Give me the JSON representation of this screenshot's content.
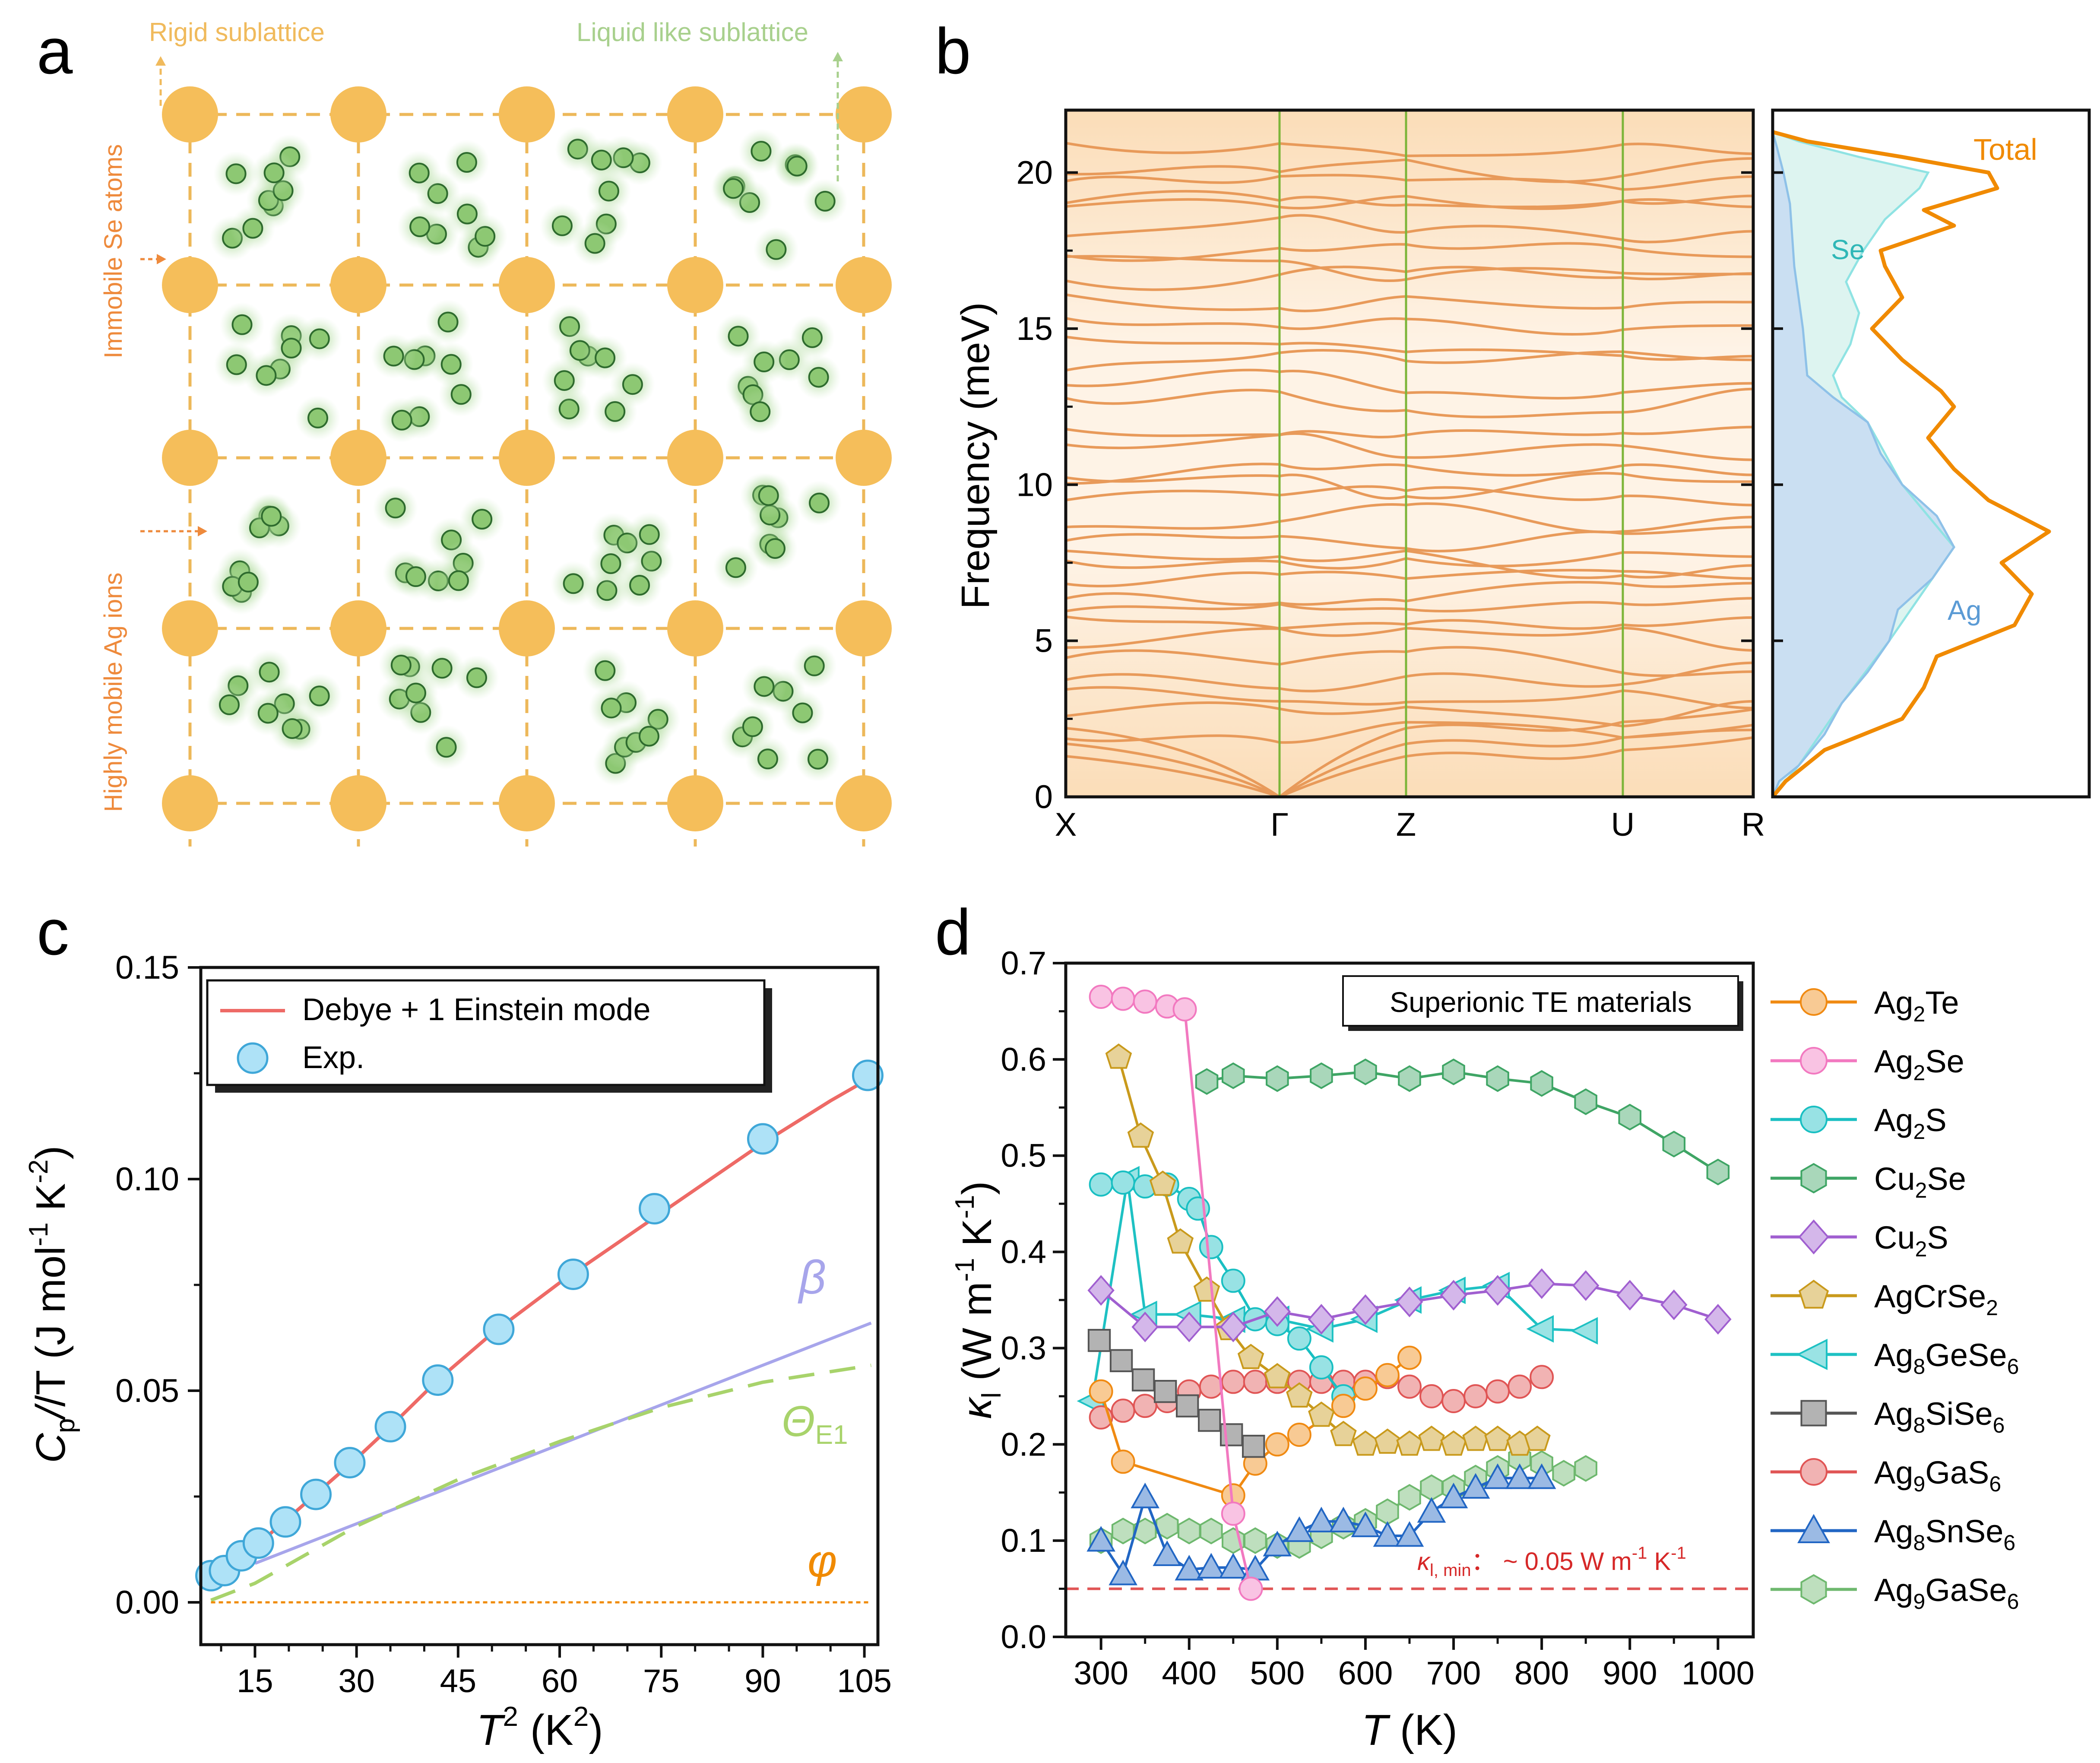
{
  "panels": {
    "a": {
      "label": "a",
      "rigid_label": "Rigid sublattice",
      "liquid_label": "Liquid like sublattice",
      "immobile_label": "Immobile Se atoms",
      "mobile_label": "Highly mobile Ag ions",
      "colors": {
        "se_atom": "#F5BE5A",
        "ag_ion": "#8DC873",
        "grid": "#EDB85A",
        "arrow_text": "#EE8A3C",
        "liquid_text": "#A8D08D"
      }
    },
    "b": {
      "label": "b",
      "ylabel": "Frequency (meV)",
      "yticks": [
        "0",
        "5",
        "10",
        "15",
        "20"
      ],
      "kpoints": [
        "X",
        "Γ",
        "Z",
        "U",
        "R"
      ],
      "dos_labels": {
        "total": "Total",
        "se": "Se",
        "ag": "Ag"
      },
      "colors": {
        "bands": "#E89A5A",
        "kline": "#7DB53A",
        "total": "#F08A00",
        "se": "#3FC7C7",
        "ag": "#6FA8DC"
      }
    },
    "c": {
      "label": "c",
      "xlabel_main": "T",
      "xlabel_unit": "(K",
      "xlabel_end": ")",
      "ylabel_main": "C",
      "ylabel_sub": "p",
      "ylabel_mid": "/T (J mol",
      "ylabel_tail": " K",
      "legend": {
        "fit": "Debye + 1 Einstein mode",
        "exp": "Exp."
      },
      "annotations": {
        "beta": "β",
        "theta_main": "Θ",
        "theta_sub": "E1",
        "phi": "φ"
      }
    },
    "d": {
      "label": "d",
      "box_label": "Superionic TE materials",
      "kmin_label_sym": "κ",
      "kmin_label_sub": "l, min",
      "kmin_label_rest": "： ~ 0.05 W m",
      "kmin_label_end": " K",
      "xlabel_main": "T",
      "xlabel_unit": " (K)",
      "ylabel_main": "κ",
      "ylabel_sub": "l",
      "ylabel_unit": " (W m",
      "ylabel_tail": " K"
    }
  },
  "chart_data": [
    {
      "type": "line",
      "panel": "b",
      "ylabel": "Frequency (meV)",
      "ylim": [
        0,
        22
      ],
      "x_ticks": [
        "X",
        "Γ",
        "Z",
        "U",
        "R"
      ],
      "y_ticks": [
        0,
        5,
        10,
        15,
        20
      ]
    },
    {
      "type": "area",
      "panel": "b-dos",
      "series": [
        {
          "name": "Total"
        },
        {
          "name": "Se"
        },
        {
          "name": "Ag"
        }
      ]
    },
    {
      "type": "scatter",
      "panel": "c",
      "xlim": [
        7,
        107
      ],
      "ylim": [
        -0.01,
        0.15
      ],
      "x_ticks": [
        15,
        30,
        45,
        60,
        75,
        90,
        105
      ],
      "y_ticks": [
        "0.00",
        "0.05",
        "0.10",
        "0.15"
      ],
      "series": [
        {
          "name": "Exp.",
          "x": [
            8.5,
            10.5,
            13,
            15.5,
            19.5,
            24,
            29,
            35,
            42,
            51,
            62,
            74,
            90,
            105.5
          ],
          "y": [
            0.0063,
            0.0075,
            0.011,
            0.014,
            0.019,
            0.0255,
            0.033,
            0.0415,
            0.0525,
            0.0645,
            0.0775,
            0.093,
            0.1095,
            0.1245
          ]
        },
        {
          "name": "Debye + 1 Einstein mode",
          "x": [
            8.5,
            12,
            16,
            20,
            25,
            30,
            35,
            42,
            50,
            60,
            70,
            80,
            90,
            100,
            106
          ],
          "y": [
            0.0063,
            0.0095,
            0.0145,
            0.02,
            0.027,
            0.034,
            0.0415,
            0.0525,
            0.0635,
            0.0755,
            0.0865,
            0.0975,
            0.1085,
            0.1185,
            0.124
          ]
        },
        {
          "name": "β",
          "x": [
            15,
            106
          ],
          "y": [
            0.0092,
            0.066
          ]
        },
        {
          "name": "ΘE1",
          "x": [
            8.5,
            15,
            30,
            45,
            60,
            75,
            90,
            106
          ],
          "y": [
            0.0005,
            0.0045,
            0.018,
            0.029,
            0.038,
            0.046,
            0.052,
            0.056
          ]
        },
        {
          "name": "φ",
          "x": [
            8.5,
            106
          ],
          "y": [
            0,
            0
          ]
        }
      ]
    },
    {
      "type": "line",
      "panel": "d",
      "xlabel": "T (K)",
      "xlim": [
        260,
        1040
      ],
      "ylim": [
        0,
        0.7
      ],
      "x_ticks": [
        300,
        400,
        500,
        600,
        700,
        800,
        900,
        1000
      ],
      "y_ticks": [
        "0.0",
        "0.1",
        "0.2",
        "0.3",
        "0.4",
        "0.5",
        "0.6",
        "0.7"
      ],
      "kmin": 0.05,
      "series": [
        {
          "name": "Ag2Te",
          "name_base": "Ag",
          "name_s1": "2",
          "name_mid": "Te",
          "name_s2": "",
          "color": "#F08A12",
          "marker": "circle",
          "x": [
            300,
            325,
            450,
            475,
            500,
            525,
            575,
            600,
            625,
            650
          ],
          "y": [
            0.255,
            0.182,
            0.147,
            0.18,
            0.2,
            0.21,
            0.24,
            0.258,
            0.272,
            0.29
          ]
        },
        {
          "name": "Ag2Se",
          "name_base": "Ag",
          "name_s1": "2",
          "name_mid": "Se",
          "name_s2": "",
          "color": "#F279C0",
          "marker": "circle",
          "x": [
            300,
            325,
            350,
            375,
            395,
            450,
            470
          ],
          "y": [
            0.665,
            0.663,
            0.66,
            0.655,
            0.652,
            0.128,
            0.05
          ]
        },
        {
          "name": "Ag2S",
          "name_base": "Ag",
          "name_s1": "2",
          "name_mid": "S",
          "name_s2": "",
          "color": "#19BFC2",
          "marker": "circle",
          "x": [
            300,
            325,
            350,
            375,
            400,
            410,
            425,
            450,
            475,
            500,
            525,
            550,
            575
          ],
          "y": [
            0.47,
            0.472,
            0.468,
            0.47,
            0.455,
            0.445,
            0.405,
            0.37,
            0.33,
            0.325,
            0.31,
            0.28,
            0.25
          ]
        },
        {
          "name": "Cu2Se",
          "name_base": "Cu",
          "name_s1": "2",
          "name_mid": "Se",
          "name_s2": "",
          "color": "#3FA565",
          "marker": "hexagon",
          "x": [
            420,
            450,
            500,
            550,
            600,
            650,
            700,
            750,
            800,
            850,
            900,
            950,
            1000
          ],
          "y": [
            0.577,
            0.583,
            0.58,
            0.583,
            0.587,
            0.58,
            0.587,
            0.58,
            0.575,
            0.556,
            0.54,
            0.512,
            0.483
          ]
        },
        {
          "name": "Cu2S",
          "name_base": "Cu",
          "name_s1": "2",
          "name_mid": "S",
          "name_s2": "",
          "color": "#A05FD0",
          "marker": "diamond",
          "x": [
            300,
            350,
            400,
            450,
            500,
            550,
            600,
            650,
            700,
            750,
            800,
            850,
            900,
            950,
            1000
          ],
          "y": [
            0.36,
            0.322,
            0.322,
            0.322,
            0.338,
            0.33,
            0.34,
            0.348,
            0.355,
            0.36,
            0.367,
            0.365,
            0.355,
            0.345,
            0.33
          ]
        },
        {
          "name": "AgCrSe2",
          "name_base": "AgCrSe",
          "name_s1": "2",
          "name_mid": "",
          "name_s2": "",
          "color": "#C99A1C",
          "marker": "pentagon",
          "x": [
            320,
            345,
            370,
            390,
            420,
            445,
            470,
            500,
            525,
            550,
            575,
            600,
            625,
            650,
            675,
            700,
            725,
            750,
            775,
            795
          ],
          "y": [
            0.602,
            0.52,
            0.47,
            0.41,
            0.36,
            0.32,
            0.29,
            0.27,
            0.25,
            0.23,
            0.21,
            0.2,
            0.202,
            0.2,
            0.205,
            0.2,
            0.205,
            0.205,
            0.2,
            0.205
          ]
        },
        {
          "name": "Ag8GeSe6",
          "name_base": "Ag",
          "name_s1": "8",
          "name_mid": "GeSe",
          "name_s2": "6",
          "color": "#1EC1C3",
          "marker": "tri-left",
          "x": [
            290,
            330,
            350,
            400,
            450,
            500,
            550,
            600,
            650,
            700,
            750,
            800,
            850
          ],
          "y": [
            0.245,
            0.475,
            0.335,
            0.335,
            0.33,
            0.33,
            0.32,
            0.33,
            0.35,
            0.36,
            0.365,
            0.32,
            0.318
          ]
        },
        {
          "name": "Ag8SiSe6",
          "name_base": "Ag",
          "name_s1": "8",
          "name_mid": "SiSe",
          "name_s2": "6",
          "color": "#555555",
          "marker": "square",
          "x": [
            298,
            323,
            348,
            373,
            398,
            423,
            448,
            473
          ],
          "y": [
            0.308,
            0.287,
            0.267,
            0.255,
            0.24,
            0.225,
            0.21,
            0.198
          ]
        },
        {
          "name": "Ag9GaS6",
          "name_base": "Ag",
          "name_s1": "9",
          "name_mid": "GaS",
          "name_s2": "6",
          "color": "#E05555",
          "marker": "circle",
          "x": [
            300,
            325,
            350,
            375,
            400,
            425,
            450,
            475,
            500,
            525,
            550,
            575,
            600,
            625,
            650,
            675,
            700,
            725,
            750,
            775,
            800
          ],
          "y": [
            0.228,
            0.235,
            0.24,
            0.245,
            0.255,
            0.26,
            0.265,
            0.265,
            0.265,
            0.265,
            0.265,
            0.265,
            0.265,
            0.27,
            0.26,
            0.25,
            0.245,
            0.25,
            0.255,
            0.26,
            0.27
          ]
        },
        {
          "name": "Ag8SnSe6",
          "name_base": "Ag",
          "name_s1": "8",
          "name_mid": "SnSe",
          "name_s2": "6",
          "color": "#2166C4",
          "marker": "triangle",
          "x": [
            300,
            325,
            350,
            375,
            400,
            425,
            450,
            475,
            500,
            525,
            550,
            575,
            600,
            625,
            650,
            675,
            700,
            725,
            750,
            775,
            800
          ],
          "y": [
            0.1,
            0.065,
            0.145,
            0.085,
            0.07,
            0.072,
            0.072,
            0.07,
            0.095,
            0.11,
            0.12,
            0.12,
            0.115,
            0.105,
            0.105,
            0.13,
            0.145,
            0.155,
            0.165,
            0.165,
            0.165
          ]
        },
        {
          "name": "Ag9GaSe6",
          "name_base": "Ag",
          "name_s1": "9",
          "name_mid": "GaSe",
          "name_s2": "6",
          "color": "#6EB86E",
          "marker": "hexagon",
          "x": [
            300,
            325,
            350,
            375,
            400,
            425,
            450,
            475,
            500,
            525,
            550,
            575,
            600,
            625,
            650,
            675,
            700,
            725,
            750,
            775,
            800,
            825,
            850
          ],
          "y": [
            0.1,
            0.11,
            0.11,
            0.115,
            0.11,
            0.11,
            0.1,
            0.1,
            0.095,
            0.095,
            0.105,
            0.115,
            0.12,
            0.13,
            0.145,
            0.155,
            0.155,
            0.165,
            0.175,
            0.185,
            0.18,
            0.17,
            0.175
          ]
        }
      ]
    }
  ]
}
